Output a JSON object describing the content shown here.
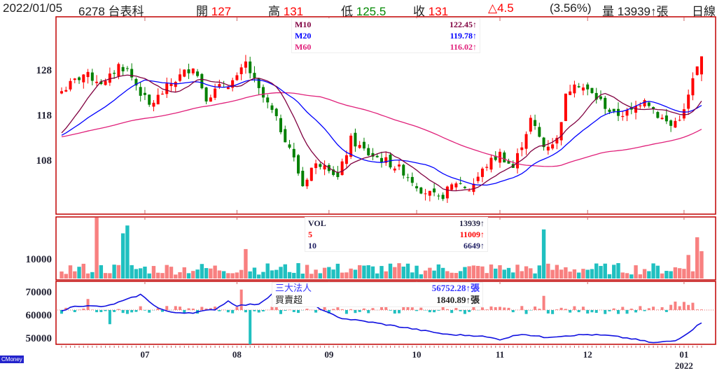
{
  "header": {
    "date": "2022/01/05",
    "symbol": "6278 台表科",
    "open_label": "開",
    "open": "127",
    "high_label": "高",
    "high": "131",
    "low_label": "低",
    "low": "125.5",
    "close_label": "收",
    "close": "131",
    "change": "△4.5",
    "change_pct": "(3.56%)",
    "volume_label": "量",
    "volume": "13939↑張",
    "period": "日線"
  },
  "legend_price": [
    {
      "name": "M10",
      "value": "122.45↑",
      "color": "#800040"
    },
    {
      "name": "M20",
      "value": "119.78↑",
      "color": "#0000ff"
    },
    {
      "name": "M60",
      "value": "116.02↑",
      "color": "#e0207a"
    }
  ],
  "legend_volume": [
    {
      "name": "VOL",
      "value": "13939↑",
      "color": "#222244"
    },
    {
      "name": "5",
      "value": "11009↑",
      "color": "#ff0000"
    },
    {
      "name": "10",
      "value": "6649↑",
      "color": "#222266"
    }
  ],
  "legend_inst": [
    {
      "name": "三大法人",
      "value": "56752.28↑張",
      "color": "#3333ff"
    },
    {
      "name": "買賣超",
      "value": "1840.89↑張",
      "color": "#222222"
    }
  ],
  "logo": "CMoney",
  "colors": {
    "up": "#ff0000",
    "down": "#008000",
    "vol_up": "#f88080",
    "vol_down": "#20c0c0",
    "ma10": "#800040",
    "ma20": "#0000ff",
    "ma60": "#e0207a",
    "frame": "#c00000"
  },
  "chart_data": {
    "type": "candlestick",
    "count": 147,
    "price_axis": {
      "ticks": [
        "128",
        "118",
        "108"
      ],
      "range": [
        96.2,
        139.6
      ]
    },
    "volume_axis": {
      "ticks": [
        "10000"
      ],
      "range": [
        0,
        31000
      ]
    },
    "inst_axis": {
      "ticks": [
        "70000",
        "60000",
        "50000"
      ],
      "range": [
        47300,
        74500
      ]
    },
    "x_labels": [
      {
        "label": "07",
        "i": 19
      },
      {
        "label": "08",
        "i": 40
      },
      {
        "label": "09",
        "i": 61
      },
      {
        "label": "10",
        "i": 81
      },
      {
        "label": "11",
        "i": 100
      },
      {
        "label": "12",
        "i": 120
      },
      {
        "label": "01",
        "i": 142
      }
    ],
    "year_label": "2022",
    "close_keypoints": [
      [
        0,
        123.3
      ],
      [
        5,
        127
      ],
      [
        10,
        125
      ],
      [
        13,
        129
      ],
      [
        15,
        128
      ],
      [
        18,
        123
      ],
      [
        20,
        120
      ],
      [
        25,
        125
      ],
      [
        30,
        129
      ],
      [
        33,
        122
      ],
      [
        36,
        124
      ],
      [
        40,
        126
      ],
      [
        42,
        129.5
      ],
      [
        45,
        123.3
      ],
      [
        48,
        118.7
      ],
      [
        52,
        111
      ],
      [
        55,
        102.4
      ],
      [
        57,
        106.3
      ],
      [
        60,
        107.8
      ],
      [
        63,
        104
      ],
      [
        66,
        112.5
      ],
      [
        70,
        109.4
      ],
      [
        74,
        107.8
      ],
      [
        78,
        105.5
      ],
      [
        82,
        101.6
      ],
      [
        86,
        99.3
      ],
      [
        90,
        103.2
      ],
      [
        93,
        101.6
      ],
      [
        97,
        107
      ],
      [
        100,
        109.4
      ],
      [
        103,
        106.3
      ],
      [
        107,
        117
      ],
      [
        110,
        111
      ],
      [
        113,
        112.5
      ],
      [
        115,
        122
      ],
      [
        117,
        125.7
      ],
      [
        120,
        123.3
      ],
      [
        123,
        121
      ],
      [
        126,
        118
      ],
      [
        130,
        118.7
      ],
      [
        133,
        122
      ],
      [
        136,
        118
      ],
      [
        139,
        115.6
      ],
      [
        142,
        118.7
      ],
      [
        144,
        125.7
      ],
      [
        146,
        131
      ]
    ],
    "volume_spikes": [
      [
        8,
        31000
      ],
      [
        14,
        23000
      ],
      [
        15,
        27000
      ],
      [
        42,
        15000
      ],
      [
        110,
        25000
      ],
      [
        143,
        12000
      ],
      [
        145,
        21000
      ],
      [
        146,
        13939
      ]
    ],
    "inst_keypoints": [
      [
        0,
        61500
      ],
      [
        3,
        64000
      ],
      [
        10,
        63600
      ],
      [
        15,
        66700
      ],
      [
        18,
        68800
      ],
      [
        22,
        63000
      ],
      [
        25,
        61000
      ],
      [
        30,
        61000
      ],
      [
        35,
        62400
      ],
      [
        38,
        66000
      ],
      [
        40,
        64000
      ],
      [
        45,
        64800
      ],
      [
        48,
        69000
      ],
      [
        50,
        64500
      ],
      [
        51,
        71000
      ],
      [
        53,
        73600
      ],
      [
        55,
        67500
      ],
      [
        60,
        61500
      ],
      [
        64,
        58500
      ],
      [
        70,
        57000
      ],
      [
        80,
        54000
      ],
      [
        88,
        51500
      ],
      [
        95,
        51000
      ],
      [
        100,
        49400
      ],
      [
        105,
        51800
      ],
      [
        110,
        50300
      ],
      [
        115,
        51000
      ],
      [
        120,
        51500
      ],
      [
        125,
        51000
      ],
      [
        130,
        49700
      ],
      [
        135,
        47900
      ],
      [
        140,
        48800
      ],
      [
        143,
        52400
      ],
      [
        146,
        56752
      ]
    ],
    "netbuy_spikes": [
      [
        41,
        6500
      ],
      [
        43,
        -11000
      ],
      [
        110,
        4500
      ],
      [
        6,
        3500
      ],
      [
        11,
        -4500
      ]
    ]
  }
}
